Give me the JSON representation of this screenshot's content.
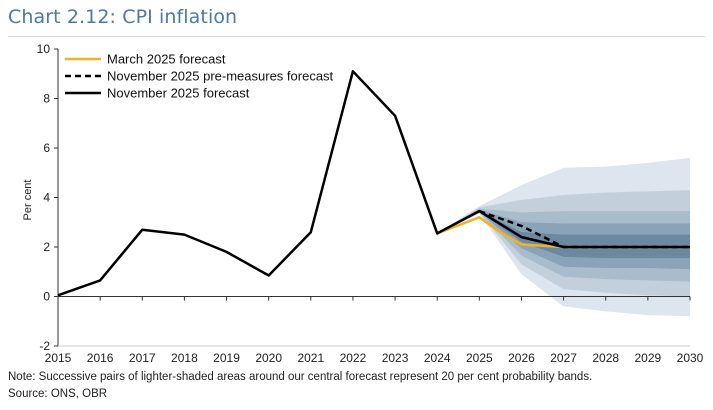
{
  "header": {
    "title": "Chart 2.12: CPI inflation"
  },
  "footer": {
    "note": "Note: Successive pairs of lighter-shaded areas around our central forecast represent 20 per cent probability bands.",
    "source": "Source: ONS, OBR"
  },
  "chart_data": {
    "type": "line",
    "title": "Chart 2.12: CPI inflation",
    "xlabel": "",
    "ylabel": "Per cent",
    "xlim": [
      2015,
      2030
    ],
    "ylim": [
      -2,
      10
    ],
    "x_ticks": [
      "2015",
      "2016",
      "2017",
      "2018",
      "2019",
      "2020",
      "2021",
      "2022",
      "2023",
      "2024",
      "2025",
      "2026",
      "2027",
      "2028",
      "2029",
      "2030"
    ],
    "y_ticks": [
      "-2",
      "0",
      "2",
      "4",
      "6",
      "8",
      "10"
    ],
    "gridlines": false,
    "legend_position": "top-left",
    "legend": [
      {
        "label": "March 2025 forecast",
        "color": "#f0b323",
        "dash": "solid"
      },
      {
        "label": "November 2025 pre-measures forecast",
        "color": "#000000",
        "dash": "dashed"
      },
      {
        "label": "November 2025 forecast",
        "color": "#000000",
        "dash": "solid"
      }
    ],
    "series": [
      {
        "name": "March 2025 forecast",
        "x": [
          2024,
          2025,
          2025.5,
          2026,
          2027,
          2028,
          2029,
          2030
        ],
        "values": [
          2.55,
          3.2,
          2.6,
          2.1,
          2.0,
          2.0,
          2.0,
          2.0
        ]
      },
      {
        "name": "November 2025 pre-measures forecast",
        "x": [
          2025,
          2026,
          2027,
          2028,
          2029,
          2030
        ],
        "values": [
          3.45,
          2.85,
          2.0,
          2.0,
          2.0,
          2.0
        ]
      },
      {
        "name": "November 2025 forecast",
        "x": [
          2015,
          2016,
          2017,
          2018,
          2019,
          2020,
          2021,
          2022,
          2023,
          2024,
          2025,
          2026,
          2027,
          2028,
          2029,
          2030
        ],
        "values": [
          0.05,
          0.65,
          2.7,
          2.5,
          1.8,
          0.85,
          2.6,
          9.1,
          7.3,
          2.55,
          3.45,
          2.4,
          2.0,
          2.0,
          2.0,
          2.0
        ]
      }
    ],
    "fan_bands": {
      "x": [
        2024,
        2025,
        2026,
        2027,
        2028,
        2029,
        2030
      ],
      "colors": [
        "#dde5ee",
        "#c3d0dc",
        "#a9bccc",
        "#8aa3b8",
        "#6c89a1"
      ],
      "bounds": [
        {
          "lower": [
            2.55,
            3.35,
            0.9,
            -0.4,
            -0.6,
            -0.75,
            -0.8
          ],
          "upper": [
            2.55,
            3.65,
            4.5,
            5.2,
            5.25,
            5.4,
            5.6
          ]
        },
        {
          "lower": [
            2.55,
            3.38,
            1.3,
            0.3,
            0.15,
            0.05,
            0.0
          ],
          "upper": [
            2.55,
            3.6,
            3.9,
            4.1,
            4.2,
            4.25,
            4.3
          ]
        },
        {
          "lower": [
            2.55,
            3.4,
            1.65,
            0.8,
            0.7,
            0.65,
            0.6
          ],
          "upper": [
            2.55,
            3.55,
            3.4,
            3.45,
            3.45,
            3.45,
            3.45
          ]
        },
        {
          "lower": [
            2.55,
            3.42,
            1.95,
            1.2,
            1.15,
            1.15,
            1.1
          ],
          "upper": [
            2.55,
            3.5,
            3.0,
            2.95,
            2.95,
            2.95,
            2.95
          ]
        },
        {
          "lower": [
            2.55,
            3.44,
            2.2,
            1.6,
            1.55,
            1.55,
            1.55
          ],
          "upper": [
            2.55,
            3.47,
            2.6,
            2.5,
            2.5,
            2.5,
            2.5
          ]
        }
      ]
    }
  }
}
